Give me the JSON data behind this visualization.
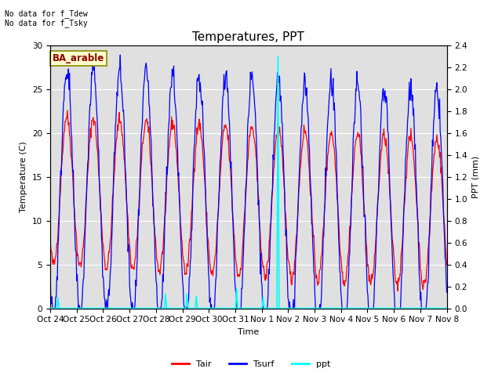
{
  "title": "Temperatures, PPT",
  "xlabel": "Time",
  "ylabel_left": "Temperature (C)",
  "ylabel_right": "PPT (mm)",
  "annotation_text": "No data for f_Tdew\nNo data for f_Tsky",
  "legend_label_text": "BA_arable",
  "legend_entries": [
    "Tair",
    "Tsurf",
    "ppt"
  ],
  "legend_colors": [
    "red",
    "blue",
    "cyan"
  ],
  "ylim_left": [
    0,
    30
  ],
  "ylim_right": [
    0.0,
    2.4
  ],
  "xtick_labels": [
    "Oct 24",
    "Oct 25",
    "Oct 26",
    "Oct 27",
    "Oct 28",
    "Oct 29",
    "Oct 30",
    "Oct 31",
    "Nov 1",
    "Nov 2",
    "Nov 3",
    "Nov 4",
    "Nov 5",
    "Nov 6",
    "Nov 7",
    "Nov 8"
  ],
  "num_points": 720,
  "title_fontsize": 11,
  "axis_fontsize": 8,
  "tick_fontsize": 7.5,
  "annotation_fontsize": 7,
  "legend_fontsize": 8
}
